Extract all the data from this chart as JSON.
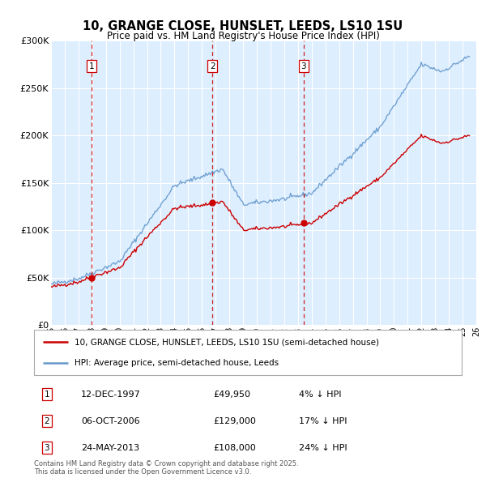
{
  "title": "10, GRANGE CLOSE, HUNSLET, LEEDS, LS10 1SU",
  "subtitle": "Price paid vs. HM Land Registry's House Price Index (HPI)",
  "ylim": [
    0,
    300000
  ],
  "yticks": [
    0,
    50000,
    100000,
    150000,
    200000,
    250000,
    300000
  ],
  "ytick_labels": [
    "£0",
    "£50K",
    "£100K",
    "£150K",
    "£200K",
    "£250K",
    "£300K"
  ],
  "transactions": [
    {
      "num": 1,
      "year": 1997.95,
      "price": 49950,
      "label": "12-DEC-1997",
      "price_str": "£49,950",
      "pct": "4% ↓ HPI"
    },
    {
      "num": 2,
      "year": 2006.77,
      "price": 129000,
      "label": "06-OCT-2006",
      "price_str": "£129,000",
      "pct": "17% ↓ HPI"
    },
    {
      "num": 3,
      "year": 2013.4,
      "price": 108000,
      "label": "24-MAY-2013",
      "price_str": "£108,000",
      "pct": "24% ↓ HPI"
    }
  ],
  "legend_line1": "10, GRANGE CLOSE, HUNSLET, LEEDS, LS10 1SU (semi-detached house)",
  "legend_line2": "HPI: Average price, semi-detached house, Leeds",
  "footnote": "Contains HM Land Registry data © Crown copyright and database right 2025.\nThis data is licensed under the Open Government Licence v3.0.",
  "line_color_red": "#cc0000",
  "line_color_blue": "#6699cc",
  "bg_color": "#ddeeff",
  "grid_color": "#ffffff",
  "xmin": 1995,
  "xmax": 2026
}
